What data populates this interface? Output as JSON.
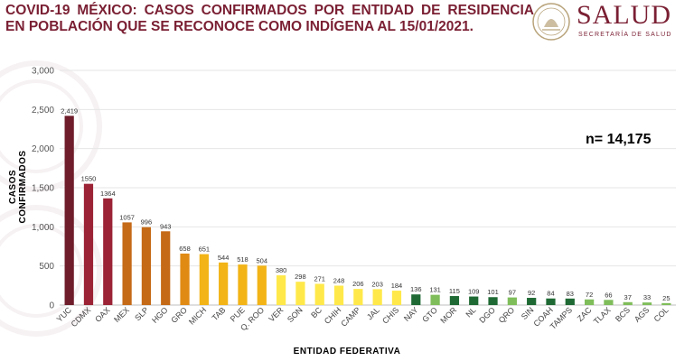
{
  "title": "COVID-19 MÉXICO: CASOS CONFIRMADOS POR ENTIDAD DE RESIDENCIA EN POBLACIÓN QUE SE RECONOCE COMO INDÍGENA AL 15/01/2021.",
  "brand": {
    "name": "SALUD",
    "subtitle": "SECRETARÍA DE SALUD",
    "color": "#7a1f33"
  },
  "total_label": "n= 14,175",
  "chart_data": {
    "type": "bar",
    "ylabel": "CASOS CONFIRMADOS",
    "xlabel": "ENTIDAD FEDERATIVA",
    "ylim": [
      0,
      3000
    ],
    "yticks": [
      0,
      500,
      1000,
      1500,
      2000,
      2500,
      3000
    ],
    "ytick_labels": [
      "0",
      "500",
      "1,000",
      "1,500",
      "2,000",
      "2,500",
      "3,000"
    ],
    "grid": true,
    "categories": [
      "YUC",
      "CDMX",
      "OAX",
      "MEX",
      "SLP",
      "HGO",
      "GRO",
      "MICH",
      "TAB",
      "PUE",
      "Q. ROO",
      "VER",
      "SON",
      "BC",
      "CHIH",
      "CAMP",
      "JAL",
      "CHIS",
      "NAY",
      "GTO",
      "MOR",
      "NL",
      "DGO",
      "QRO",
      "SIN",
      "COAH",
      "TAMPS",
      "ZAC",
      "TLAX",
      "BCS",
      "AGS",
      "COL"
    ],
    "values": [
      2419,
      1550,
      1364,
      1057,
      996,
      943,
      658,
      651,
      544,
      518,
      504,
      380,
      298,
      271,
      248,
      206,
      203,
      184,
      136,
      131,
      115,
      109,
      101,
      97,
      92,
      84,
      83,
      72,
      66,
      37,
      33,
      25
    ],
    "value_labels": [
      "2,419",
      "1550",
      "1364",
      "1057",
      "996",
      "943",
      "658",
      "651",
      "544",
      "518",
      "504",
      "380",
      "298",
      "271",
      "248",
      "206",
      "203",
      "184",
      "136",
      "131",
      "115",
      "109",
      "101",
      "97",
      "92",
      "84",
      "83",
      "72",
      "66",
      "37",
      "33",
      "25"
    ],
    "colors": [
      "#6f1d2a",
      "#9b2335",
      "#9b2335",
      "#c56a17",
      "#c56a17",
      "#c56a17",
      "#e08a14",
      "#f2b416",
      "#f2b416",
      "#f2b416",
      "#f2b416",
      "#ffe94a",
      "#ffe94a",
      "#ffe94a",
      "#ffe94a",
      "#ffe94a",
      "#ffe94a",
      "#ffe94a",
      "#1f6a34",
      "#7fbd5a",
      "#1f6a34",
      "#1f6a34",
      "#1f6a34",
      "#7fbd5a",
      "#1f6a34",
      "#1f6a34",
      "#1f6a34",
      "#7fbd5a",
      "#7fbd5a",
      "#7fbd5a",
      "#7fbd5a",
      "#7fbd5a"
    ]
  }
}
